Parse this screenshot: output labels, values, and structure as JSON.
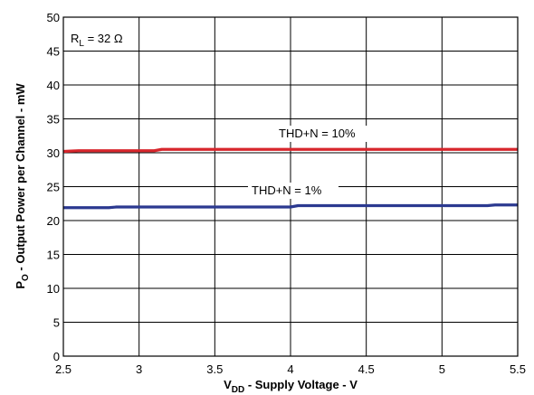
{
  "chart_data": {
    "type": "line",
    "xlabel": {
      "main": "V",
      "sub": "DD",
      "rest": " - Supply Voltage - V"
    },
    "ylabel": {
      "main": "P",
      "sub": "O",
      "rest": " - Output Power per Channel - mW"
    },
    "xlim": [
      2.5,
      5.5
    ],
    "ylim": [
      0,
      50
    ],
    "xticks": [
      "2.5",
      "3",
      "3.5",
      "4",
      "4.5",
      "5",
      "5.5"
    ],
    "yticks": [
      "0",
      "5",
      "10",
      "15",
      "20",
      "25",
      "30",
      "35",
      "40",
      "45",
      "50"
    ],
    "grid": true,
    "annotations": {
      "rl": {
        "main": "R",
        "sub": "L",
        "rest": " = 32 Ω"
      },
      "thd10": "THD+N = 10%",
      "thd1": "THD+N = 1%"
    },
    "series": [
      {
        "label": "THD+N = 10%",
        "color": "#d7262c",
        "x": [
          2.5,
          2.6,
          2.8,
          3.0,
          3.1,
          3.15,
          3.5,
          4.0,
          4.5,
          5.0,
          5.5
        ],
        "y": [
          30.2,
          30.3,
          30.3,
          30.3,
          30.3,
          30.5,
          30.5,
          30.5,
          30.5,
          30.5,
          30.5
        ]
      },
      {
        "label": "THD+N = 1%",
        "color": "#2b3990",
        "x": [
          2.5,
          2.8,
          2.85,
          3.0,
          3.5,
          4.0,
          4.05,
          4.5,
          5.0,
          5.3,
          5.35,
          5.5
        ],
        "y": [
          21.9,
          21.9,
          22.0,
          22.0,
          22.0,
          22.0,
          22.2,
          22.2,
          22.2,
          22.2,
          22.3,
          22.3
        ]
      }
    ]
  }
}
